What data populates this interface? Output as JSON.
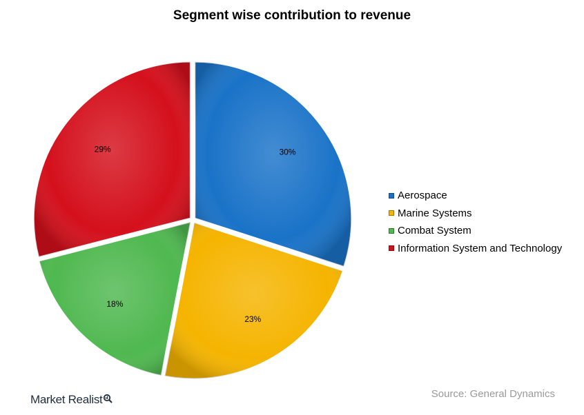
{
  "chart_data": {
    "type": "pie",
    "title": "Segment wise contribution to revenue",
    "slices": [
      {
        "name": "Aerospace",
        "value": 30,
        "label": "30%",
        "color": "#1a73c8"
      },
      {
        "name": "Marine Systems",
        "value": 23,
        "label": "23%",
        "color": "#f5b400"
      },
      {
        "name": "Combat System",
        "value": 18,
        "label": "18%",
        "color": "#4fb84f"
      },
      {
        "name": "Information System and Technology",
        "value": 29,
        "label": "29%",
        "color": "#d4101c"
      }
    ],
    "start": "12 o'clock",
    "direction": "clockwise",
    "exploded": true,
    "legend_position": "right"
  },
  "source": "Source: General Dynamics",
  "brand": {
    "name": "Market Realist",
    "icon": "magnifier-icon"
  }
}
